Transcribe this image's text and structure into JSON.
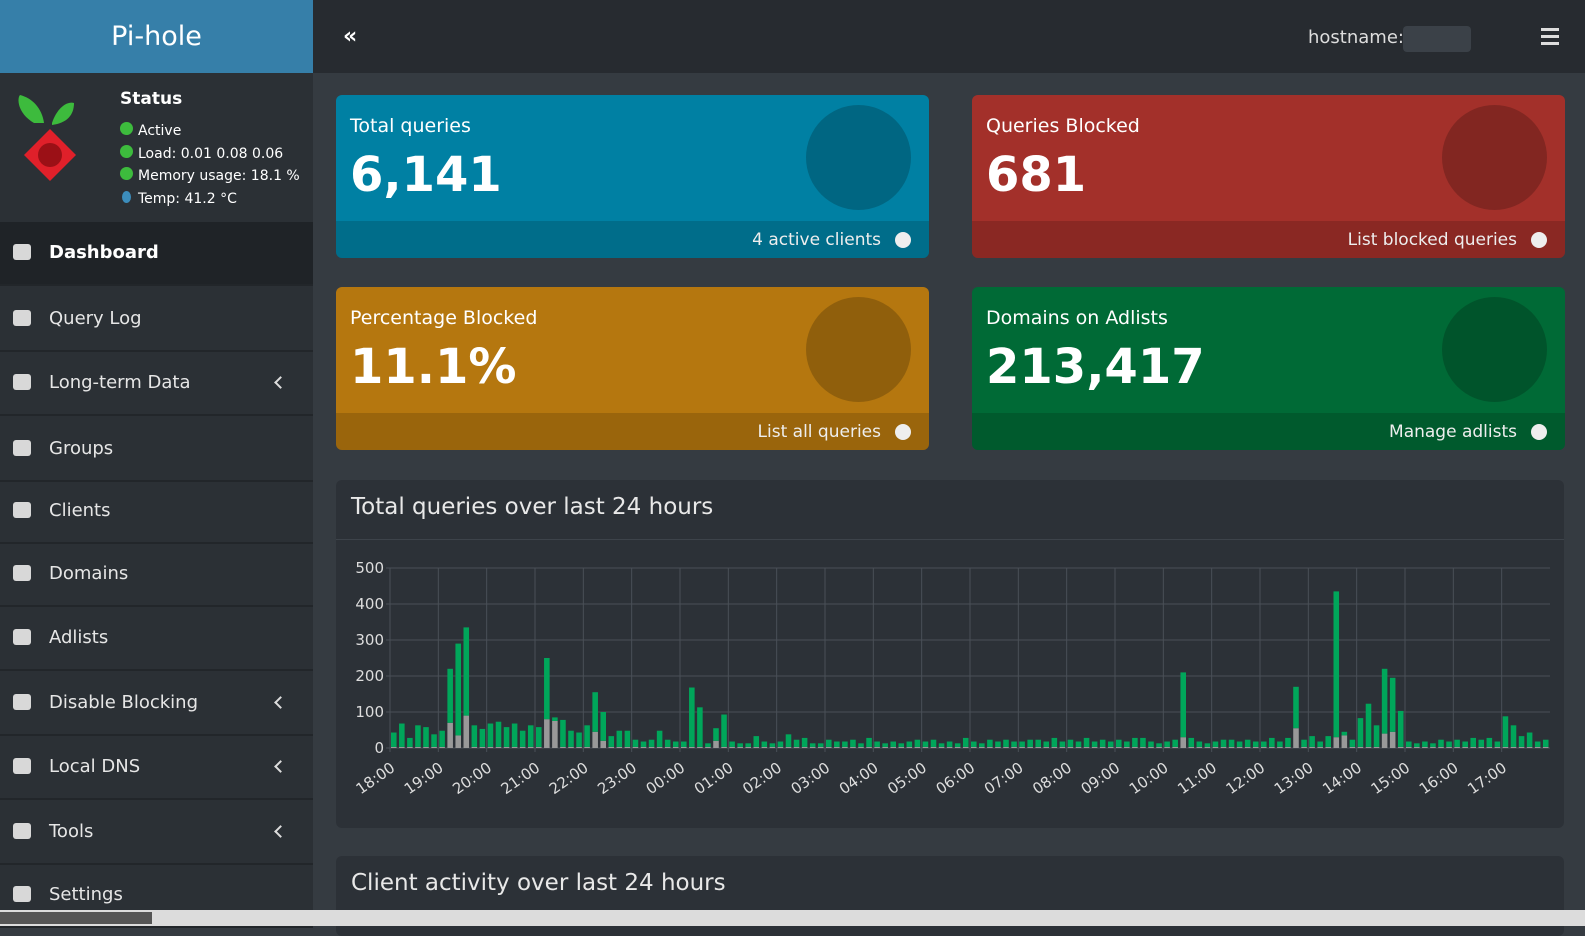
{
  "header": {
    "brand": "Pi-hole",
    "hostname_label": "hostname:"
  },
  "sidebar": {
    "status": {
      "title": "Status",
      "items": [
        "Active",
        "Load:  0.01  0.08  0.06",
        "Memory usage:  18.1 %",
        "Temp: 41.2 °C"
      ]
    },
    "nav": [
      {
        "label": "Dashboard"
      },
      {
        "label": "Query Log"
      },
      {
        "label": "Long-term Data"
      },
      {
        "label": "Groups"
      },
      {
        "label": "Clients"
      },
      {
        "label": "Domains"
      },
      {
        "label": "Adlists"
      },
      {
        "label": "Disable Blocking"
      },
      {
        "label": "Local DNS"
      },
      {
        "label": "Tools"
      },
      {
        "label": "Settings"
      }
    ]
  },
  "cards": [
    {
      "title": "Total queries",
      "value": "6,141",
      "link": "4 active clients"
    },
    {
      "title": "Queries Blocked",
      "value": "681",
      "link": "List blocked queries"
    },
    {
      "title": "Percentage Blocked",
      "value": "11.1%",
      "link": "List all queries"
    },
    {
      "title": "Domains on Adlists",
      "value": "213,417",
      "link": "Manage adlists"
    }
  ],
  "chart_data": {
    "type": "bar",
    "stacked": true,
    "title": "Total queries over last 24 hours",
    "grid": true,
    "categories": [
      "18:00",
      null,
      null,
      null,
      null,
      null,
      "19:00",
      null,
      null,
      null,
      null,
      null,
      "20:00",
      null,
      null,
      null,
      null,
      null,
      "21:00",
      null,
      null,
      null,
      null,
      null,
      "22:00",
      null,
      null,
      null,
      null,
      null,
      "23:00",
      null,
      null,
      null,
      null,
      null,
      "00:00",
      null,
      null,
      null,
      null,
      null,
      "01:00",
      null,
      null,
      null,
      null,
      null,
      "02:00",
      null,
      null,
      null,
      null,
      null,
      "03:00",
      null,
      null,
      null,
      null,
      null,
      "04:00",
      null,
      null,
      null,
      null,
      null,
      "05:00",
      null,
      null,
      null,
      null,
      null,
      "06:00",
      null,
      null,
      null,
      null,
      null,
      "07:00",
      null,
      null,
      null,
      null,
      null,
      "08:00",
      null,
      null,
      null,
      null,
      null,
      "09:00",
      null,
      null,
      null,
      null,
      null,
      "10:00",
      null,
      null,
      null,
      null,
      null,
      "11:00",
      null,
      null,
      null,
      null,
      null,
      "12:00",
      null,
      null,
      null,
      null,
      null,
      "13:00",
      null,
      null,
      null,
      null,
      null,
      "14:00",
      null,
      null,
      null,
      null,
      null,
      "15:00",
      null,
      null,
      null,
      null,
      null,
      "16:00",
      null,
      null,
      null,
      null,
      null,
      "17:00",
      null,
      null,
      null,
      null,
      null
    ],
    "series": [
      {
        "color": "#999999",
        "values": [
          3,
          3,
          3,
          3,
          3,
          3,
          3,
          70,
          35,
          90,
          3,
          3,
          3,
          3,
          3,
          3,
          3,
          3,
          3,
          80,
          75,
          3,
          3,
          3,
          3,
          45,
          20,
          3,
          3,
          3,
          3,
          3,
          3,
          3,
          3,
          3,
          3,
          3,
          3,
          3,
          20,
          3,
          3,
          3,
          3,
          3,
          3,
          3,
          3,
          3,
          3,
          3,
          3,
          3,
          3,
          3,
          3,
          3,
          3,
          3,
          3,
          3,
          3,
          3,
          3,
          3,
          3,
          3,
          3,
          3,
          3,
          3,
          3,
          3,
          3,
          3,
          3,
          3,
          3,
          3,
          3,
          3,
          3,
          3,
          3,
          3,
          3,
          3,
          3,
          3,
          3,
          3,
          3,
          3,
          3,
          3,
          3,
          3,
          30,
          3,
          3,
          3,
          3,
          3,
          3,
          3,
          3,
          3,
          3,
          3,
          3,
          3,
          55,
          3,
          3,
          3,
          3,
          30,
          35,
          3,
          3,
          3,
          3,
          40,
          45,
          3,
          3,
          3,
          3,
          3,
          3,
          3,
          3,
          3,
          3,
          3,
          3,
          3,
          3,
          3,
          3,
          3,
          3,
          3
        ]
      },
      {
        "color": "#00a65a",
        "values": [
          40,
          65,
          25,
          60,
          55,
          35,
          45,
          150,
          255,
          245,
          60,
          50,
          65,
          70,
          55,
          65,
          45,
          60,
          55,
          170,
          10,
          75,
          45,
          40,
          60,
          110,
          80,
          30,
          45,
          45,
          20,
          15,
          20,
          45,
          20,
          15,
          15,
          165,
          110,
          10,
          35,
          90,
          15,
          10,
          10,
          30,
          15,
          10,
          15,
          35,
          20,
          25,
          10,
          10,
          20,
          15,
          15,
          20,
          10,
          25,
          15,
          10,
          15,
          10,
          15,
          20,
          15,
          20,
          10,
          15,
          10,
          25,
          15,
          10,
          20,
          15,
          20,
          15,
          15,
          20,
          20,
          15,
          25,
          15,
          20,
          15,
          25,
          15,
          20,
          15,
          20,
          15,
          25,
          25,
          15,
          10,
          15,
          20,
          180,
          25,
          15,
          10,
          15,
          20,
          20,
          15,
          20,
          15,
          15,
          25,
          15,
          25,
          115,
          20,
          30,
          15,
          30,
          405,
          10,
          20,
          80,
          120,
          60,
          180,
          150,
          100,
          15,
          10,
          15,
          10,
          20,
          15,
          20,
          15,
          25,
          20,
          25,
          15,
          85,
          60,
          30,
          40,
          15,
          20
        ]
      }
    ],
    "ylim": [
      0,
      500
    ],
    "yticks": [
      0,
      100,
      200,
      300,
      400,
      500
    ]
  },
  "second_box_title": "Client activity over last 24 hours"
}
